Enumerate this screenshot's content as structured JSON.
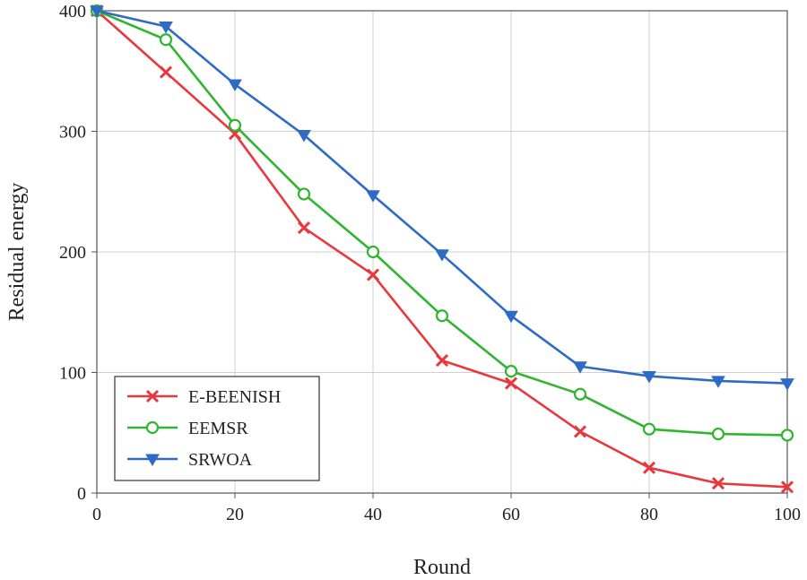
{
  "chart_data": {
    "type": "line",
    "title": "",
    "xlabel": "Round",
    "ylabel": "Residual energy",
    "xlim": [
      0,
      100
    ],
    "ylim": [
      0,
      400
    ],
    "xticks": [
      0,
      20,
      40,
      60,
      80,
      100
    ],
    "yticks": [
      0,
      100,
      200,
      300,
      400
    ],
    "grid": true,
    "legend_position": "lower-left",
    "x": [
      0,
      10,
      20,
      30,
      40,
      50,
      60,
      70,
      80,
      90,
      100
    ],
    "series": [
      {
        "name": "E-BEENISH",
        "color": "#e8383d",
        "marker": "x",
        "values": [
          400,
          349,
          298,
          220,
          181,
          110,
          91,
          51,
          21,
          8,
          5
        ]
      },
      {
        "name": "EEMSR",
        "color": "#2fb52f",
        "marker": "circle",
        "values": [
          400,
          376,
          305,
          248,
          200,
          147,
          101,
          82,
          53,
          49,
          48
        ]
      },
      {
        "name": "SRWOA",
        "color": "#2e6bc4",
        "marker": "triangle-down",
        "values": [
          400,
          387,
          339,
          297,
          247,
          198,
          147,
          105,
          97,
          93,
          91
        ]
      }
    ]
  }
}
